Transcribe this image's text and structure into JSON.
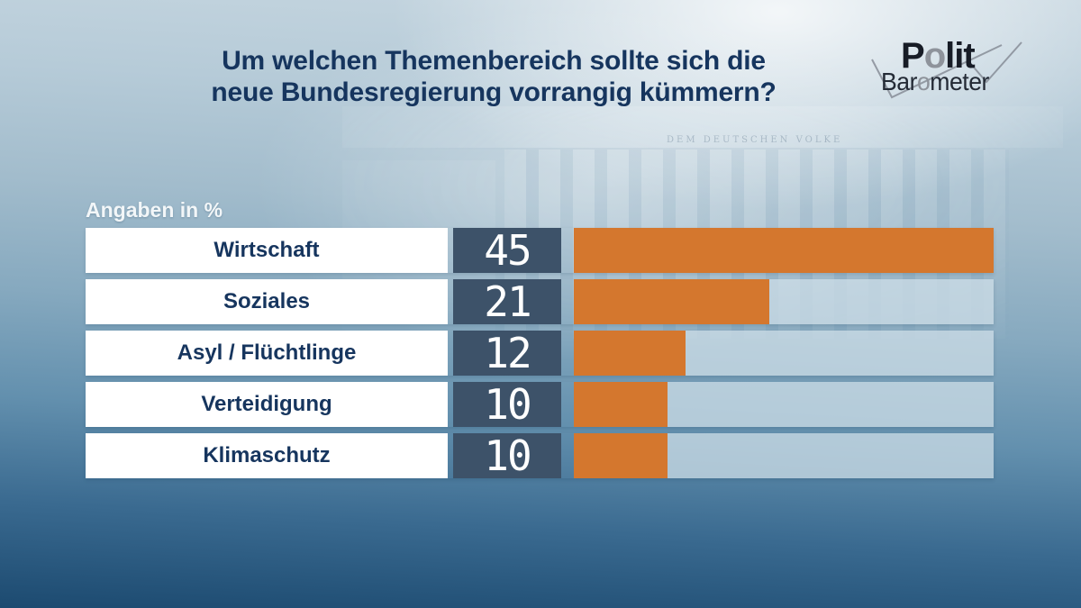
{
  "header": {
    "title_line1": "Um welchen Themenbereich sollte sich die",
    "title_line2": "neue Bundesregierung vorrangig kümmern?"
  },
  "logo": {
    "top_pre": "P",
    "top_o": "o",
    "top_post": "lit",
    "bottom_pre": "Bar",
    "bottom_o": "o",
    "bottom_post": "meter"
  },
  "background": {
    "inscription": "DEM DEUTSCHEN VOLKE"
  },
  "chart": {
    "unit_label": "Angaben in %",
    "max_value": 45,
    "rows": [
      {
        "label": "Wirtschaft",
        "value": 45
      },
      {
        "label": "Soziales",
        "value": 21
      },
      {
        "label": "Asyl / Flüchtlinge",
        "value": 12
      },
      {
        "label": "Verteidigung",
        "value": 10
      },
      {
        "label": "Klimaschutz",
        "value": 10
      }
    ]
  },
  "colors": {
    "bar_orange": "#d4772e",
    "value_box": "#3d5269",
    "navy_text": "#16355e",
    "track": "rgba(206,222,231,0.75)"
  },
  "chart_data": {
    "type": "bar",
    "orientation": "horizontal",
    "title": "Um welchen Themenbereich sollte sich die neue Bundesregierung vorrangig kümmern?",
    "unit_label": "Angaben in %",
    "categories": [
      "Wirtschaft",
      "Soziales",
      "Asyl / Flüchtlinge",
      "Verteidigung",
      "Klimaschutz"
    ],
    "values": [
      45,
      21,
      12,
      10,
      10
    ],
    "xlim": [
      0,
      45
    ],
    "grid": false,
    "legend": false,
    "bar_color": "#d4772e",
    "brand": "Politbarometer"
  }
}
